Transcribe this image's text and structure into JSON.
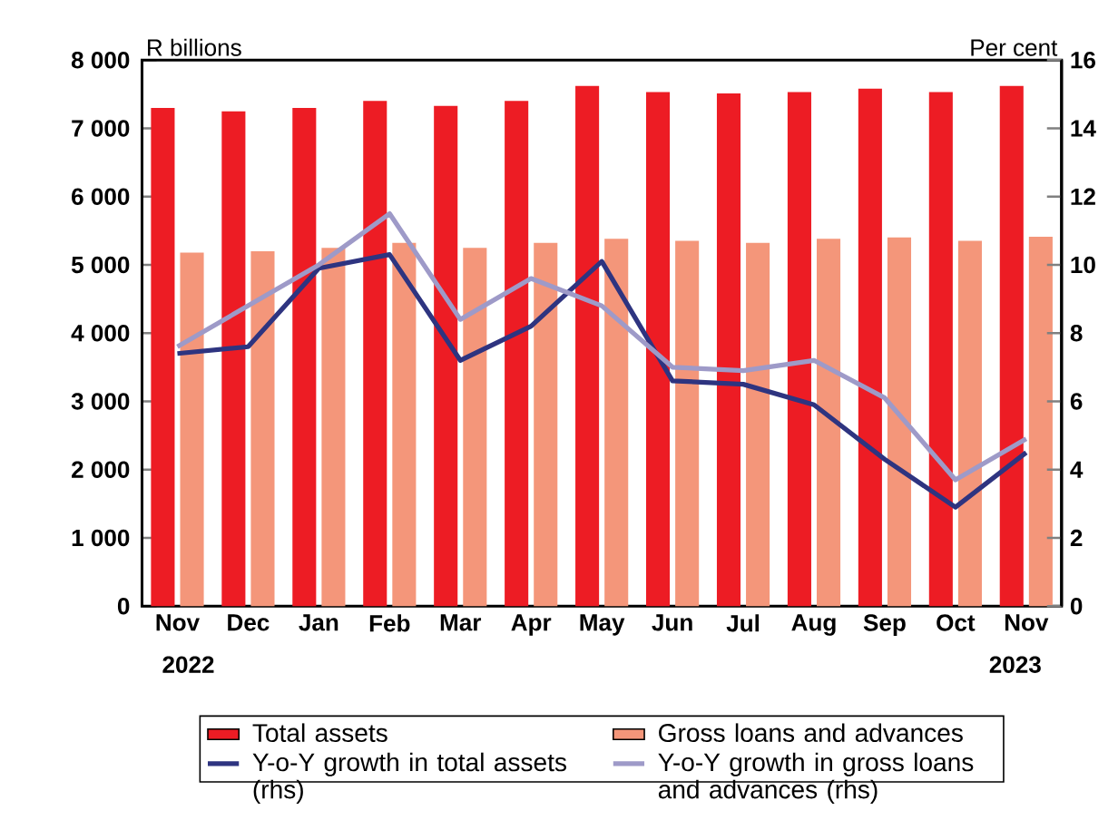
{
  "chart_data": {
    "type": "bar",
    "categories": [
      "Nov",
      "Dec",
      "Jan",
      "Feb",
      "Mar",
      "Apr",
      "May",
      "Jun",
      "Jul",
      "Aug",
      "Sep",
      "Oct",
      "Nov"
    ],
    "series": [
      {
        "name": "Total assets",
        "color": "#ed1c24",
        "values": [
          7300,
          7250,
          7300,
          7400,
          7330,
          7400,
          7620,
          7530,
          7510,
          7530,
          7580,
          7530,
          7620
        ]
      },
      {
        "name": "Gross loans and advances",
        "color": "#f4967a",
        "values": [
          5180,
          5200,
          5250,
          5320,
          5250,
          5320,
          5380,
          5350,
          5320,
          5380,
          5400,
          5350,
          5410
        ]
      },
      {
        "name": "Y-o-Y growth in total assets (rhs)",
        "type": "line",
        "axis": "y2",
        "color": "#2e3480",
        "values": [
          7.4,
          7.6,
          9.9,
          10.3,
          7.2,
          8.2,
          10.1,
          6.6,
          6.5,
          5.9,
          4.3,
          2.9,
          4.5
        ]
      },
      {
        "name": "Y-o-Y growth in gross loans and advances (rhs)",
        "type": "line",
        "axis": "y2",
        "color": "#9e9ac8",
        "values": [
          7.6,
          8.8,
          10.0,
          11.5,
          8.4,
          9.6,
          8.8,
          7.0,
          6.9,
          7.2,
          6.1,
          3.7,
          4.9
        ]
      }
    ],
    "ylabel": "R billions",
    "y2label": "Per cent",
    "ylim": [
      0,
      8000
    ],
    "yticks": [
      {
        "value": 0,
        "label": "0"
      },
      {
        "value": 1000,
        "label": "1 000"
      },
      {
        "value": 2000,
        "label": "2 000"
      },
      {
        "value": 3000,
        "label": "3 000"
      },
      {
        "value": 4000,
        "label": "4 000"
      },
      {
        "value": 5000,
        "label": "5 000"
      },
      {
        "value": 6000,
        "label": "6 000"
      },
      {
        "value": 7000,
        "label": "7 000"
      },
      {
        "value": 8000,
        "label": "8 000"
      }
    ],
    "y2lim": [
      0,
      16
    ],
    "y2ticks": [
      0,
      2,
      4,
      6,
      8,
      10,
      12,
      14,
      16
    ],
    "annotations": [
      "2022",
      "2023"
    ],
    "legend": "bottom"
  }
}
